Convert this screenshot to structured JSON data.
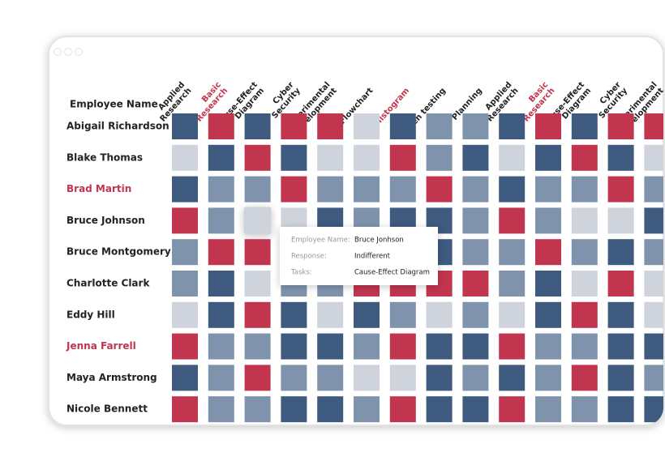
{
  "chart_data": {
    "type": "heatmap",
    "y_title": "Employee Name",
    "x_labels": [
      [
        "Applied",
        "Research"
      ],
      [
        "Basic",
        "Research"
      ],
      [
        "Cause-Effect",
        "Diagram"
      ],
      [
        "Cyber",
        "Security"
      ],
      [
        "Experimental",
        "Development"
      ],
      [
        "Flowchart"
      ],
      [
        "Histogram"
      ],
      [
        "Pen testing"
      ],
      [
        "Planning"
      ],
      [
        "Applied",
        "Research"
      ],
      [
        "Basic",
        "Research"
      ],
      [
        "Cause-Effect",
        "Diagram"
      ],
      [
        "Cyber",
        "Security"
      ],
      [
        "Experimental",
        "Development"
      ]
    ],
    "x_highlight": [
      false,
      true,
      false,
      false,
      false,
      false,
      true,
      false,
      false,
      false,
      true,
      false,
      false,
      false
    ],
    "categories": [
      "Abigail Richardson",
      "Blake Thomas",
      "Brad Martin",
      "Bruce Johnson",
      "Bruce Montgomery",
      "Charlotte Clark",
      "Eddy Hill",
      "Jenna Farrell",
      "Maya Armstrong",
      "Nicole Bennett"
    ],
    "y_highlight": [
      false,
      false,
      true,
      false,
      false,
      false,
      false,
      true,
      false,
      false
    ],
    "highlight_color": "#c1354f",
    "colors": [
      "#cfd3dc",
      "#7f93ad",
      "#3e5a7e",
      "#c1354f"
    ],
    "values": [
      [
        2,
        3,
        2,
        3,
        3,
        0,
        2,
        1,
        1,
        2,
        3,
        2,
        3,
        3
      ],
      [
        0,
        2,
        3,
        2,
        0,
        0,
        3,
        1,
        2,
        0,
        2,
        3,
        2,
        0
      ],
      [
        2,
        1,
        1,
        3,
        1,
        1,
        1,
        3,
        1,
        2,
        1,
        1,
        3,
        1
      ],
      [
        3,
        1,
        0,
        0,
        2,
        1,
        2,
        2,
        1,
        3,
        1,
        0,
        0,
        2
      ],
      [
        1,
        3,
        3,
        1,
        1,
        1,
        1,
        2,
        1,
        1,
        3,
        1,
        2,
        1
      ],
      [
        1,
        2,
        0,
        1,
        1,
        3,
        3,
        3,
        3,
        1,
        2,
        0,
        3,
        0
      ],
      [
        0,
        2,
        3,
        2,
        0,
        2,
        1,
        0,
        1,
        0,
        2,
        3,
        2,
        0
      ],
      [
        3,
        1,
        1,
        2,
        2,
        1,
        3,
        2,
        2,
        3,
        1,
        1,
        2,
        2
      ],
      [
        2,
        1,
        3,
        1,
        1,
        0,
        0,
        2,
        1,
        2,
        1,
        3,
        2,
        1
      ],
      [
        3,
        1,
        1,
        2,
        2,
        1,
        3,
        2,
        2,
        3,
        1,
        1,
        2,
        2
      ]
    ],
    "tooltip": {
      "labels": [
        "Employee Name:",
        "Response:",
        "Tasks:"
      ],
      "values": [
        "Bruce Jonhson",
        "Indifferent",
        "Cause-Effect Diagram"
      ]
    }
  }
}
